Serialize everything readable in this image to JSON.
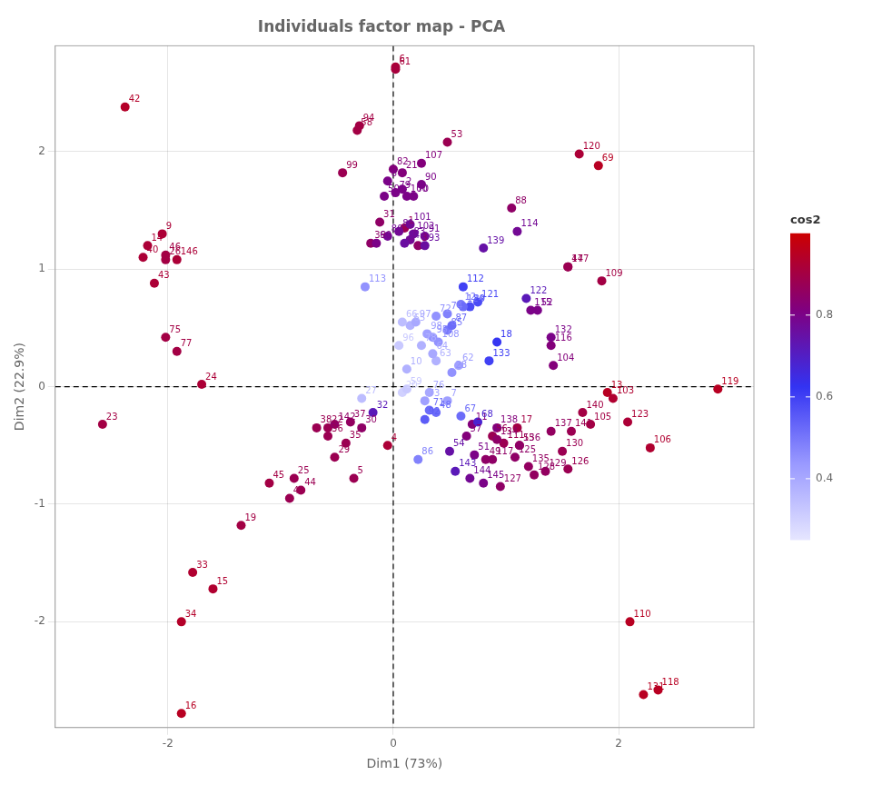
{
  "chart_data": {
    "type": "scatter",
    "title": "Individuals factor map - PCA",
    "xlabel": "Dim1 (73%)",
    "ylabel": "Dim2 (22.9%)",
    "xlim": [
      -3.0,
      3.2
    ],
    "ylim": [
      -2.9,
      2.9
    ],
    "xticks": [
      -2,
      0,
      2
    ],
    "yticks": [
      -2,
      -1,
      0,
      1,
      2
    ],
    "grid": true,
    "hline": 0,
    "vline": 0,
    "x": [
      0.1,
      0.08,
      0.22,
      -0.05,
      -0.35,
      0.02,
      0.48,
      -0.05,
      -2.05,
      0.12,
      0.7,
      0.6,
      1.9,
      -2.18,
      -1.6,
      -1.88,
      1.1,
      0.92,
      -1.35,
      0.08,
      0.08,
      -0.58,
      -2.58,
      -1.7,
      -0.88,
      -2.02,
      -0.28,
      0.52,
      -0.52,
      -0.28,
      -0.12,
      -0.18,
      -1.78,
      -1.88,
      -0.42,
      -0.58,
      -0.38,
      -0.68,
      -0.2,
      -2.22,
      -0.92,
      -2.38,
      -2.12,
      -0.82,
      -1.1,
      -2.02,
      1.55,
      0.38,
      0.82,
      -0.08,
      0.72,
      1.28,
      0.48,
      0.5,
      1.12,
      0.88,
      0.65,
      -0.32,
      0.12,
      -0.15,
      0.02,
      0.58,
      0.38,
      0.35,
      0.15,
      0.08,
      0.6,
      0.75,
      1.82,
      0.18,
      0.32,
      0.38,
      0.28,
      0.48,
      -2.02,
      0.32,
      -1.92,
      0.25,
      0.02,
      -0.05,
      0.05,
      0.0,
      0.15,
      0.1,
      0.48,
      0.22,
      0.52,
      1.05,
      0.68,
      0.25,
      0.28,
      0.28,
      0.28,
      -0.3,
      0.35,
      0.05,
      0.2,
      0.3,
      -0.45,
      0.12,
      0.15,
      0.18,
      1.95,
      1.42,
      1.75,
      2.28,
      0.25,
      0.4,
      1.85,
      2.1,
      0.98,
      0.62,
      -0.25,
      1.1,
      1.22,
      1.4,
      0.88,
      2.35,
      2.88,
      1.65,
      0.75,
      1.18,
      2.08,
      0.62,
      1.08,
      1.55,
      0.95,
      1.25,
      1.35,
      1.5,
      2.22,
      1.4,
      0.85,
      0.92,
      1.2,
      1.12,
      1.4,
      0.92,
      0.8,
      1.68,
      1.58,
      -0.52,
      0.55,
      0.68,
      0.8,
      -1.92,
      1.55
    ],
    "values": [
      1.35,
      1.68,
      1.2,
      -0.5,
      -0.78,
      2.72,
      -0.12,
      1.75,
      1.3,
      0.15,
      -0.32,
      0.7,
      -0.05,
      1.2,
      -1.72,
      -2.78,
      -0.35,
      0.38,
      -1.18,
      -0.05,
      1.82,
      -0.35,
      -0.32,
      0.02,
      -0.78,
      1.08,
      -0.1,
      0.12,
      -0.6,
      -0.35,
      1.4,
      -0.22,
      -1.58,
      -2.0,
      -0.48,
      -0.42,
      -0.3,
      -0.35,
      1.22,
      1.1,
      -0.95,
      2.38,
      0.88,
      -0.88,
      -0.82,
      1.12,
      1.02,
      -0.22,
      -0.62,
      1.62,
      -0.58,
      0.65,
      2.08,
      -0.55,
      -0.5,
      -0.42,
      -0.42,
      2.18,
      -0.02,
      1.22,
      2.7,
      0.18,
      0.22,
      0.28,
      0.52,
      0.55,
      -0.25,
      -0.3,
      1.88,
      1.62,
      -0.2,
      0.6,
      -0.12,
      0.62,
      0.42,
      -0.05,
      0.3,
      0.35,
      1.65,
      1.28,
      1.32,
      1.85,
      1.25,
      1.22,
      0.48,
      -0.62,
      0.52,
      1.52,
      0.68,
      1.72,
      1.28,
      -0.28,
      1.2,
      2.22,
      0.42,
      0.35,
      0.55,
      0.45,
      1.82,
      1.62,
      1.38,
      1.3,
      -0.1,
      0.18,
      -0.32,
      -0.52,
      1.9,
      0.38,
      0.9,
      -2.0,
      -0.48,
      0.85,
      0.85,
      1.32,
      0.65,
      0.35,
      -0.62,
      -2.58,
      -0.02,
      1.98,
      0.72,
      0.75,
      -0.3,
      0.68,
      -0.6,
      -0.7,
      -0.85,
      -0.75,
      -0.72,
      -0.55,
      -2.62,
      0.42,
      0.22,
      -0.45,
      -0.68,
      -0.5,
      -0.38,
      -0.35,
      1.18,
      -0.22,
      -0.38,
      -0.32,
      -0.72,
      -0.78,
      -0.82,
      1.08,
      1.02
    ],
    "point_labels": [
      "1",
      "2",
      "3",
      "4",
      "5",
      "6",
      "7",
      "8",
      "9",
      "10",
      "11",
      "12",
      "13",
      "14",
      "15",
      "16",
      "17",
      "18",
      "19",
      "20",
      "21",
      "22",
      "23",
      "24",
      "25",
      "26",
      "27",
      "28",
      "29",
      "30",
      "31",
      "32",
      "33",
      "34",
      "35",
      "36",
      "37",
      "38",
      "39",
      "40",
      "41",
      "42",
      "43",
      "44",
      "45",
      "46",
      "47",
      "48",
      "49",
      "50",
      "51",
      "52",
      "53",
      "54",
      "55",
      "56",
      "57",
      "58",
      "59",
      "60",
      "61",
      "62",
      "63",
      "64",
      "65",
      "66",
      "67",
      "68",
      "69",
      "70",
      "71",
      "72",
      "73",
      "74",
      "75",
      "76",
      "77",
      "78",
      "79",
      "80",
      "81",
      "82",
      "83",
      "84",
      "85",
      "86",
      "87",
      "88",
      "89",
      "90",
      "91",
      "92",
      "93",
      "94",
      "95",
      "96",
      "97",
      "98",
      "99",
      "100",
      "101",
      "102",
      "103",
      "104",
      "105",
      "106",
      "107",
      "108",
      "109",
      "110",
      "111",
      "112",
      "113",
      "114",
      "115",
      "116",
      "117",
      "118",
      "119",
      "120",
      "121",
      "122",
      "123",
      "124",
      "125",
      "126",
      "127",
      "128",
      "129",
      "130",
      "131",
      "132",
      "133",
      "134",
      "135",
      "136",
      "137",
      "138",
      "139",
      "140",
      "141",
      "142",
      "143",
      "144",
      "145",
      "146",
      "147"
    ],
    "cos2": [
      0.88,
      0.8,
      0.85,
      0.92,
      0.88,
      0.92,
      0.42,
      0.8,
      0.92,
      0.38,
      0.82,
      0.5,
      0.95,
      0.92,
      0.93,
      0.95,
      0.9,
      0.62,
      0.9,
      0.3,
      0.82,
      0.88,
      0.9,
      0.92,
      0.88,
      0.9,
      0.35,
      0.45,
      0.88,
      0.85,
      0.85,
      0.72,
      0.93,
      0.94,
      0.88,
      0.88,
      0.86,
      0.88,
      0.85,
      0.92,
      0.88,
      0.94,
      0.92,
      0.88,
      0.9,
      0.9,
      0.88,
      0.52,
      0.85,
      0.8,
      0.8,
      0.8,
      0.88,
      0.75,
      0.9,
      0.88,
      0.82,
      0.9,
      0.32,
      0.8,
      0.91,
      0.42,
      0.38,
      0.4,
      0.38,
      0.35,
      0.52,
      0.68,
      0.95,
      0.8,
      0.52,
      0.45,
      0.42,
      0.48,
      0.9,
      0.4,
      0.9,
      0.38,
      0.8,
      0.78,
      0.78,
      0.82,
      0.78,
      0.76,
      0.5,
      0.48,
      0.52,
      0.85,
      0.58,
      0.8,
      0.78,
      0.55,
      0.76,
      0.9,
      0.45,
      0.32,
      0.4,
      0.42,
      0.88,
      0.8,
      0.78,
      0.78,
      0.93,
      0.82,
      0.9,
      0.93,
      0.82,
      0.45,
      0.9,
      0.95,
      0.88,
      0.6,
      0.45,
      0.78,
      0.8,
      0.82,
      0.85,
      0.95,
      0.95,
      0.92,
      0.58,
      0.72,
      0.92,
      0.52,
      0.85,
      0.88,
      0.85,
      0.86,
      0.86,
      0.88,
      0.95,
      0.8,
      0.6,
      0.85,
      0.86,
      0.85,
      0.86,
      0.82,
      0.75,
      0.9,
      0.88,
      0.85,
      0.72,
      0.78,
      0.8,
      0.92,
      0.88
    ],
    "colormap": [
      "#e6e6ff",
      "#9999ff",
      "#3333f2",
      "#800080",
      "#cc0000"
    ],
    "colorbar": {
      "title": "cos2",
      "range": [
        0.25,
        1.0
      ],
      "ticks": [
        0.4,
        0.6,
        0.8
      ]
    }
  }
}
